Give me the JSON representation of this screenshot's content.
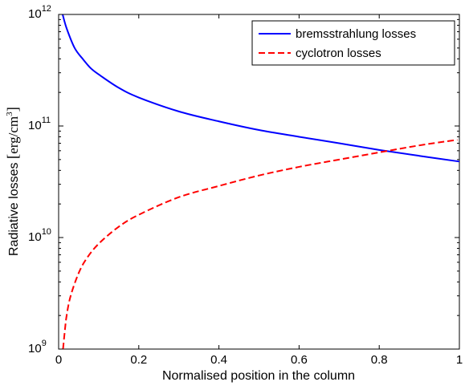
{
  "chart_data": {
    "type": "line",
    "title": "",
    "xlabel": "Normalised position in the column",
    "ylabel": "Radiative losses",
    "ylabel_unit_base": "erg/cm",
    "ylabel_unit_exp": "3",
    "xlim": [
      0,
      1
    ],
    "ylim": [
      1000000000,
      1000000000000
    ],
    "yscale": "log",
    "grid": false,
    "legend_position": "top-right",
    "x_ticks": [
      "0",
      "0.2",
      "0.4",
      "0.6",
      "0.8",
      "1"
    ],
    "x_tick_values": [
      0,
      0.2,
      0.4,
      0.6,
      0.8,
      1
    ],
    "y_ticks": [
      {
        "base": "10",
        "exp": "9",
        "value": 1000000000
      },
      {
        "base": "10",
        "exp": "10",
        "value": 10000000000
      },
      {
        "base": "10",
        "exp": "11",
        "value": 100000000000
      },
      {
        "base": "10",
        "exp": "12",
        "value": 1000000000000
      }
    ],
    "series": [
      {
        "name": "bremsstrahlung losses",
        "color": "#0000ff",
        "dash": "solid",
        "x": [
          0.01,
          0.02,
          0.04,
          0.06,
          0.08,
          0.1,
          0.15,
          0.2,
          0.3,
          0.4,
          0.5,
          0.6,
          0.7,
          0.8,
          0.9,
          1.0
        ],
        "y": [
          1000000000000,
          750000000000,
          500000000000,
          400000000000,
          330000000000,
          290000000000,
          220000000000,
          180000000000,
          135000000000,
          110000000000,
          92000000000,
          80000000000,
          70000000000,
          61000000000,
          54000000000,
          48000000000
        ]
      },
      {
        "name": "cyclotron losses",
        "color": "#ff0000",
        "dash": "dashed",
        "x": [
          0.011,
          0.015,
          0.02,
          0.03,
          0.05,
          0.07,
          0.1,
          0.15,
          0.2,
          0.3,
          0.4,
          0.5,
          0.6,
          0.7,
          0.8,
          0.9,
          0.97,
          0.995
        ],
        "y": [
          1000000000,
          1400000000,
          2000000000,
          3000000000,
          4800000000,
          6500000000,
          8800000000,
          12500000000,
          16000000000,
          23000000000,
          29000000000,
          36000000000,
          43000000000,
          50000000000,
          58000000000,
          67000000000,
          73000000000,
          75000000000
        ]
      }
    ]
  }
}
